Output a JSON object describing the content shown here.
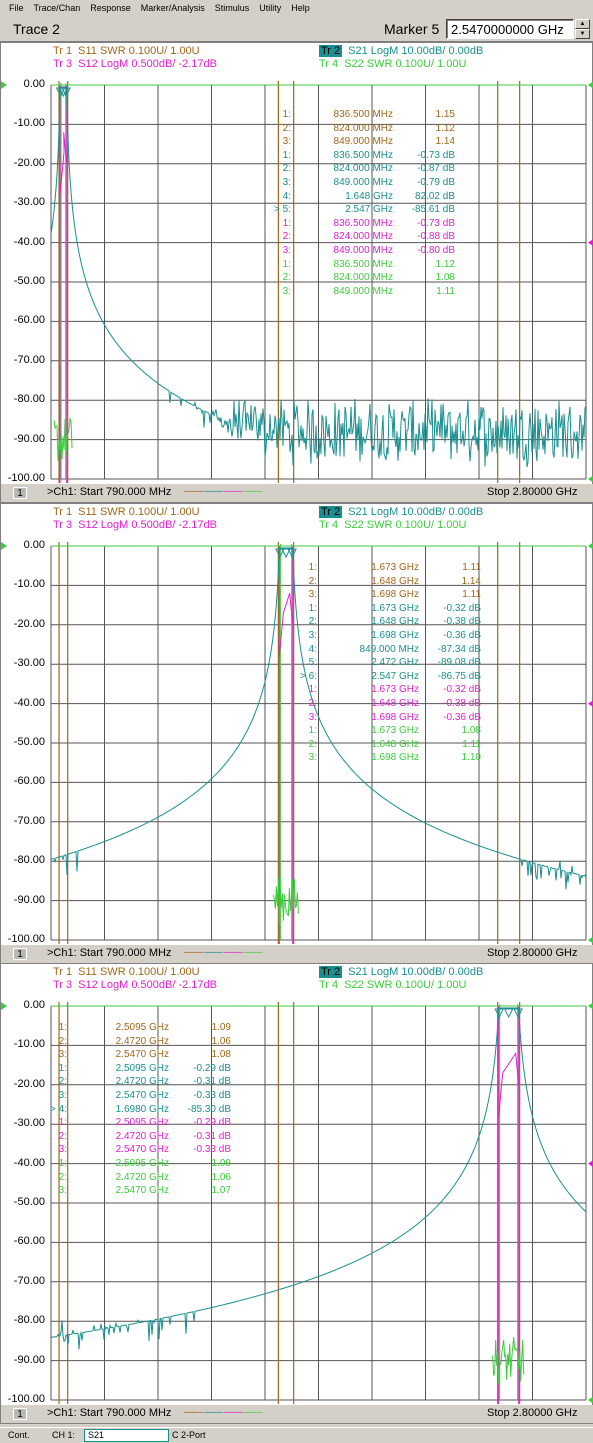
{
  "menu": [
    "File",
    "Trace/Chan",
    "Response",
    "Marker/Analysis",
    "Stimulus",
    "Utility",
    "Help"
  ],
  "title": "Trace 2",
  "marker": {
    "label": "Marker 5",
    "value": "2.5470000000 GHz"
  },
  "colors": {
    "tr1": "#a0661a",
    "tr2": "#1a8f8f",
    "tr3": "#e020d0",
    "tr4": "#3ccc3c",
    "grid": "#404040"
  },
  "y_ticks": [
    "0.00",
    "-10.00",
    "-20.00",
    "-30.00",
    "-40.00",
    "-50.00",
    "-60.00",
    "-70.00",
    "-80.00",
    "-90.00",
    "-100.00"
  ],
  "traces": {
    "tr1": {
      "name": "Tr  1",
      "param": "S11 SWR 0.100U/  1.00U"
    },
    "tr2": {
      "name": "Tr  2",
      "param": "S21 LogM 10.00dB/  0.00dB"
    },
    "tr3": {
      "name": "Tr  3",
      "param": "S12 LogM 0.500dB/  -2.17dB"
    },
    "tr4": {
      "name": "Tr  4",
      "param": "S22 SWR 0.100U/  1.00U"
    }
  },
  "footer": {
    "channel": "1",
    "start": ">Ch1: Start  790.000 MHz",
    "stop": "Stop  2.80000 GHz"
  },
  "panels": [
    {
      "markers": [
        {
          "n": "1:",
          "f": "836.500 MHz",
          "v": "1.15",
          "c": "tr1"
        },
        {
          "n": "2:",
          "f": "824.000 MHz",
          "v": "1.12",
          "c": "tr1"
        },
        {
          "n": "3:",
          "f": "849.000 MHz",
          "v": "1.14",
          "c": "tr1"
        },
        {
          "n": "1:",
          "f": "836.500 MHz",
          "v": "-0.73 dB",
          "c": "tr2"
        },
        {
          "n": "2:",
          "f": "824.000 MHz",
          "v": "-0.87 dB",
          "c": "tr2"
        },
        {
          "n": "3:",
          "f": "849.000 MHz",
          "v": "-0.79 dB",
          "c": "tr2"
        },
        {
          "n": "4:",
          "f": "1.648 GHz",
          "v": "82.02 dB",
          "c": "tr2"
        },
        {
          "n": "> 5:",
          "f": "2.547 GHz",
          "v": "-85.61 dB",
          "c": "tr2"
        },
        {
          "n": "1:",
          "f": "836.500 MHz",
          "v": "-0.73 dB",
          "c": "tr3"
        },
        {
          "n": "2:",
          "f": "824.000 MHz",
          "v": "-0.88 dB",
          "c": "tr3"
        },
        {
          "n": "3:",
          "f": "849.000 MHz",
          "v": "-0.80 dB",
          "c": "tr3"
        },
        {
          "n": "1:",
          "f": "836.500 MHz",
          "v": "1.12",
          "c": "tr4"
        },
        {
          "n": "2:",
          "f": "824.000 MHz",
          "v": "1.08",
          "c": "tr4"
        },
        {
          "n": "3:",
          "f": "849.000 MHz",
          "v": "1.11",
          "c": "tr4"
        }
      ]
    },
    {
      "markers": [
        {
          "n": "1:",
          "f": "1.673 GHz",
          "v": "1.11",
          "c": "tr1"
        },
        {
          "n": "2:",
          "f": "1.648 GHz",
          "v": "1.14",
          "c": "tr1"
        },
        {
          "n": "3:",
          "f": "1.698 GHz",
          "v": "1.11",
          "c": "tr1"
        },
        {
          "n": "1:",
          "f": "1.673 GHz",
          "v": "-0.32 dB",
          "c": "tr2"
        },
        {
          "n": "2:",
          "f": "1.648 GHz",
          "v": "-0.38 dB",
          "c": "tr2"
        },
        {
          "n": "3:",
          "f": "1.698 GHz",
          "v": "-0.36 dB",
          "c": "tr2"
        },
        {
          "n": "4:",
          "f": "849.000 MHz",
          "v": "-87.34 dB",
          "c": "tr2"
        },
        {
          "n": "5:",
          "f": "2.472 GHz",
          "v": "-89.08 dB",
          "c": "tr2"
        },
        {
          "n": "> 6:",
          "f": "2.547 GHz",
          "v": "-86.75 dB",
          "c": "tr2"
        },
        {
          "n": "1:",
          "f": "1.673 GHz",
          "v": "-0.32 dB",
          "c": "tr3"
        },
        {
          "n": "2:",
          "f": "1.648 GHz",
          "v": "-0.38 dB",
          "c": "tr3"
        },
        {
          "n": "3:",
          "f": "1.698 GHz",
          "v": "-0.36 dB",
          "c": "tr3"
        },
        {
          "n": "1:",
          "f": "1.673 GHz",
          "v": "1.08",
          "c": "tr4"
        },
        {
          "n": "2:",
          "f": "1.648 GHz",
          "v": "1.11",
          "c": "tr4"
        },
        {
          "n": "3:",
          "f": "1.698 GHz",
          "v": "1.10",
          "c": "tr4"
        }
      ]
    },
    {
      "markers": [
        {
          "n": "1:",
          "f": "2.5095 GHz",
          "v": "1.09",
          "c": "tr1"
        },
        {
          "n": "2:",
          "f": "2.4720 GHz",
          "v": "1.06",
          "c": "tr1"
        },
        {
          "n": "3:",
          "f": "2.5470 GHz",
          "v": "1.08",
          "c": "tr1"
        },
        {
          "n": "1:",
          "f": "2.5095 GHz",
          "v": "-0.29 dB",
          "c": "tr2"
        },
        {
          "n": "2:",
          "f": "2.4720 GHz",
          "v": "-0.31 dB",
          "c": "tr2"
        },
        {
          "n": "3:",
          "f": "2.5470 GHz",
          "v": "-0.33 dB",
          "c": "tr2"
        },
        {
          "n": "> 4:",
          "f": "1.6980 GHz",
          "v": "-85.30 dB",
          "c": "tr2"
        },
        {
          "n": "1:",
          "f": "2.5095 GHz",
          "v": "-0.29 dB",
          "c": "tr3"
        },
        {
          "n": "2:",
          "f": "2.4720 GHz",
          "v": "-0.31 dB",
          "c": "tr3"
        },
        {
          "n": "3:",
          "f": "2.5470 GHz",
          "v": "-0.33 dB",
          "c": "tr3"
        },
        {
          "n": "1:",
          "f": "2.5095 GHz",
          "v": "1.09",
          "c": "tr4"
        },
        {
          "n": "2:",
          "f": "2.4720 GHz",
          "v": "1.06",
          "c": "tr4"
        },
        {
          "n": "3:",
          "f": "2.5470 GHz",
          "v": "1.07",
          "c": "tr4"
        }
      ]
    }
  ],
  "status": {
    "mode": "Cont.",
    "channel": "CH 1:",
    "param": "S21",
    "cal": "C  2-Port"
  }
}
